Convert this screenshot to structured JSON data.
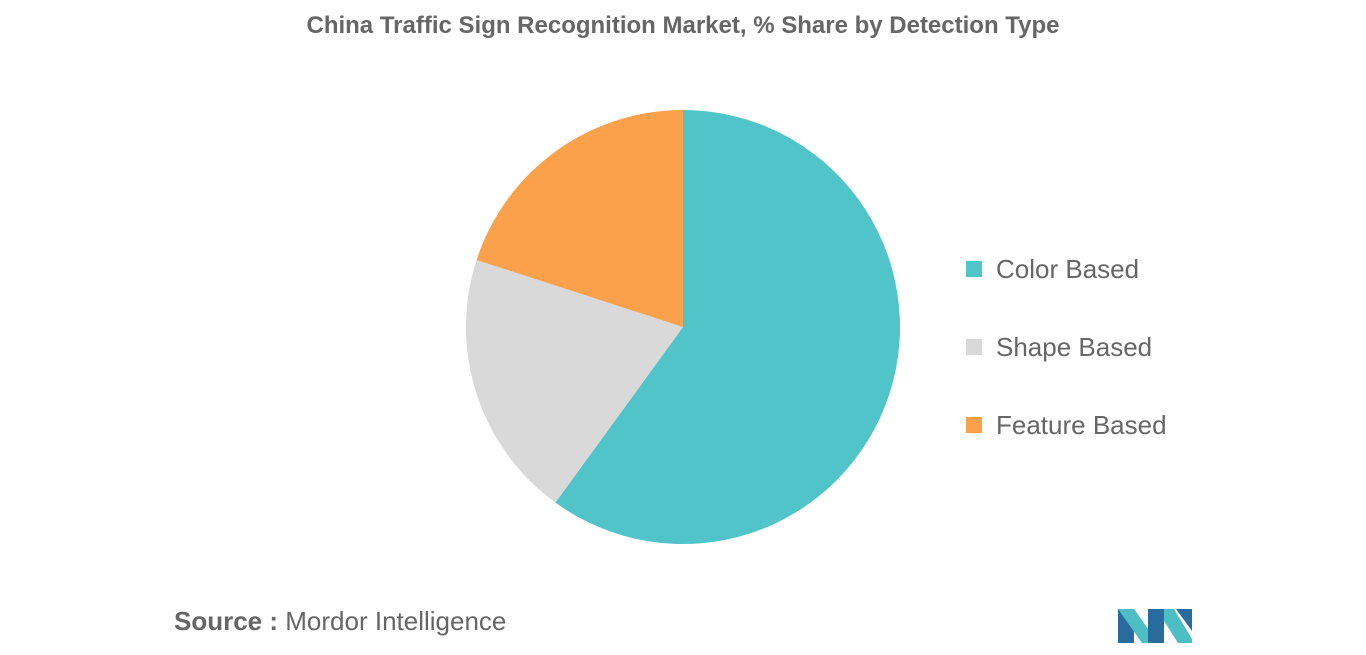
{
  "colors": {
    "color_based": "#50C4C8",
    "shape_based": "#D9D9D9",
    "feature_based": "#FBA04B",
    "text": "#666666",
    "logo_dark": "#2A6B9E",
    "logo_light": "#4DBFC4"
  },
  "chart_data": {
    "type": "pie",
    "title": "China Traffic Sign Recognition Market, % Share by Detection Type",
    "legend_position": "right",
    "slices": [
      {
        "label": "Color Based",
        "value": 60,
        "color": "#50C4C8"
      },
      {
        "label": "Shape Based",
        "value": 20,
        "color": "#D9D9D9"
      },
      {
        "label": "Feature Based",
        "value": 20,
        "color": "#FBA04B"
      }
    ]
  },
  "footer": {
    "source_label": "Source :",
    "source_value": "Mordor Intelligence",
    "logo_icon": "mordor-intelligence-logo-icon"
  }
}
